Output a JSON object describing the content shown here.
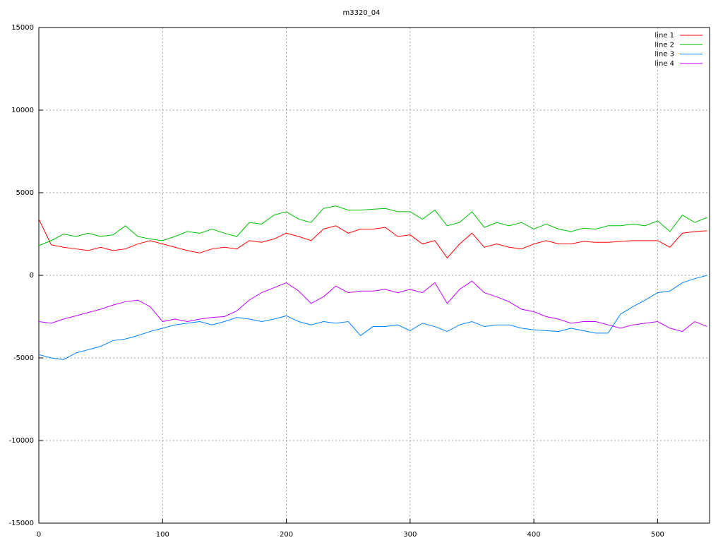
{
  "chart_data": {
    "type": "line",
    "title": "m3320_04",
    "x": [
      0,
      10,
      20,
      30,
      40,
      50,
      60,
      70,
      80,
      90,
      100,
      110,
      120,
      130,
      140,
      150,
      160,
      170,
      180,
      190,
      200,
      210,
      220,
      230,
      240,
      250,
      260,
      270,
      280,
      290,
      300,
      310,
      320,
      330,
      340,
      350,
      360,
      370,
      380,
      390,
      400,
      410,
      420,
      430,
      440,
      450,
      460,
      470,
      480,
      490,
      500,
      510,
      520,
      530,
      540
    ],
    "series": [
      {
        "name": "line 1",
        "color": "#ff0000",
        "values": [
          3400,
          1850,
          1700,
          1600,
          1500,
          1700,
          1500,
          1600,
          1900,
          2100,
          1900,
          1700,
          1500,
          1350,
          1600,
          1700,
          1600,
          2100,
          2000,
          2200,
          2550,
          2350,
          2100,
          2800,
          3000,
          2550,
          2800,
          2800,
          2900,
          2350,
          2450,
          1900,
          2100,
          1050,
          1900,
          2550,
          1700,
          1900,
          1700,
          1600,
          1900,
          2100,
          1900,
          1900,
          2050,
          2000,
          2000,
          2050,
          2100,
          2100,
          2100,
          1700,
          2550,
          2650,
          2700
        ]
      },
      {
        "name": "line 2",
        "color": "#00c000",
        "values": [
          1800,
          2100,
          2500,
          2350,
          2550,
          2350,
          2450,
          3000,
          2350,
          2200,
          2100,
          2350,
          2650,
          2550,
          2800,
          2550,
          2350,
          3200,
          3100,
          3650,
          3850,
          3400,
          3200,
          4050,
          4200,
          3950,
          3950,
          4000,
          4050,
          3850,
          3850,
          3400,
          3950,
          3000,
          3200,
          3850,
          2900,
          3200,
          3000,
          3200,
          2800,
          3100,
          2800,
          2650,
          2850,
          2800,
          3000,
          3000,
          3100,
          3000,
          3300,
          2650,
          3650,
          3200,
          3500
        ]
      },
      {
        "name": "line 3",
        "color": "#0080ff",
        "values": [
          -4800,
          -5000,
          -5100,
          -4700,
          -4500,
          -4300,
          -3950,
          -3850,
          -3650,
          -3400,
          -3200,
          -3000,
          -2900,
          -2800,
          -3000,
          -2800,
          -2550,
          -2650,
          -2800,
          -2650,
          -2450,
          -2800,
          -3000,
          -2800,
          -2900,
          -2800,
          -3650,
          -3100,
          -3100,
          -3000,
          -3350,
          -2900,
          -3100,
          -3400,
          -3000,
          -2800,
          -3100,
          -3000,
          -3000,
          -3200,
          -3300,
          -3350,
          -3400,
          -3200,
          -3350,
          -3500,
          -3500,
          -2350,
          -1900,
          -1500,
          -1050,
          -950,
          -450,
          -200,
          0
        ]
      },
      {
        "name": "line 4",
        "color": "#c000ff",
        "values": [
          -2800,
          -2900,
          -2650,
          -2450,
          -2250,
          -2050,
          -1800,
          -1600,
          -1500,
          -1900,
          -2800,
          -2650,
          -2800,
          -2650,
          -2550,
          -2500,
          -2150,
          -1500,
          -1050,
          -750,
          -450,
          -950,
          -1700,
          -1300,
          -650,
          -1050,
          -950,
          -950,
          -850,
          -1050,
          -850,
          -1050,
          -450,
          -1700,
          -850,
          -350,
          -1050,
          -1300,
          -1600,
          -2050,
          -2200,
          -2500,
          -2650,
          -2900,
          -2800,
          -2800,
          -3000,
          -3200,
          -3000,
          -2900,
          -2800,
          -3200,
          -3400,
          -2800,
          -3100
        ]
      }
    ],
    "xlim": [
      0,
      542
    ],
    "xticks": [
      0,
      100,
      200,
      300,
      400,
      500
    ],
    "ylim": [
      -15000,
      15000
    ],
    "yticks": [
      -15000,
      -10000,
      -5000,
      0,
      5000,
      10000,
      15000
    ],
    "grid": true,
    "legend": "top-right"
  }
}
